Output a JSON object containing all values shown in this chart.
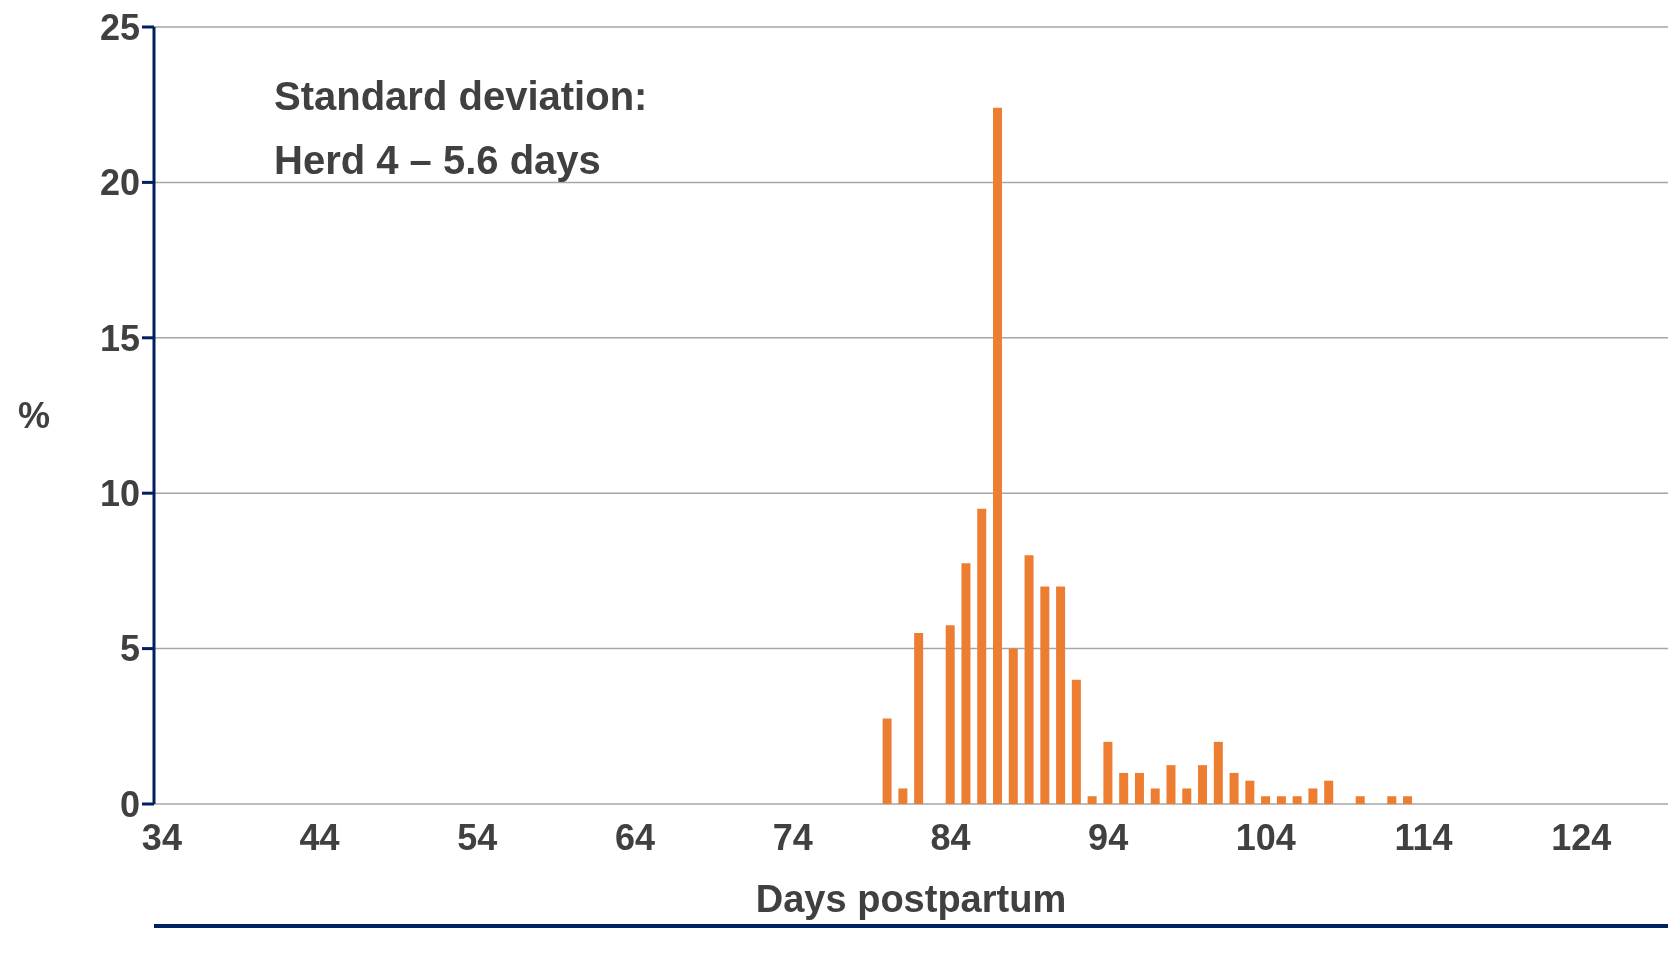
{
  "chart_data": {
    "type": "bar",
    "categories": [
      "34",
      null,
      null,
      null,
      null,
      null,
      null,
      null,
      null,
      null,
      "44",
      null,
      null,
      null,
      null,
      null,
      null,
      null,
      null,
      null,
      "54",
      null,
      null,
      null,
      null,
      null,
      null,
      null,
      null,
      null,
      "64",
      null,
      null,
      null,
      null,
      null,
      null,
      null,
      null,
      null,
      "74",
      null,
      null,
      null,
      null,
      null,
      null,
      null,
      null,
      null,
      "84",
      null,
      null,
      null,
      null,
      null,
      null,
      null,
      null,
      null,
      "94",
      null,
      null,
      null,
      null,
      null,
      null,
      null,
      null,
      null,
      "104",
      null,
      null,
      null,
      null,
      null,
      null,
      null,
      null,
      null,
      "114",
      null,
      null,
      null,
      null,
      null,
      null,
      null,
      null,
      null,
      "124",
      null,
      null,
      null,
      null,
      null
    ],
    "values": [
      0,
      0,
      0,
      0,
      0,
      0,
      0,
      0,
      0,
      0,
      0,
      0,
      0,
      0,
      0,
      0,
      0,
      0,
      0,
      0,
      0,
      0,
      0,
      0,
      0,
      0,
      0,
      0,
      0,
      0,
      0,
      0,
      0,
      0,
      0,
      0,
      0,
      0,
      0,
      0,
      0,
      0,
      0,
      0,
      0,
      0,
      2.75,
      0.5,
      5.5,
      0,
      5.75,
      7.75,
      9.5,
      22.4,
      5,
      8,
      7,
      7,
      4,
      0.25,
      2,
      1,
      1,
      0.5,
      1.25,
      0.5,
      1.25,
      2,
      1,
      0.75,
      0.25,
      0.25,
      0.25,
      0.5,
      0.75,
      0,
      0.25,
      0,
      0.25,
      0.25,
      0,
      0,
      0,
      0,
      0,
      0,
      0,
      0,
      0,
      0,
      0,
      0,
      0,
      0,
      0,
      0
    ],
    "color": "#ed7d31",
    "xlabel": "Days postpartum",
    "ylabel": "%",
    "ylim": [
      0,
      25
    ],
    "yticks": [
      0,
      5,
      10,
      15,
      20,
      25
    ],
    "grid": "y",
    "annotations": [
      "Standard deviation:",
      "Herd 4 – 5.6 days"
    ]
  }
}
